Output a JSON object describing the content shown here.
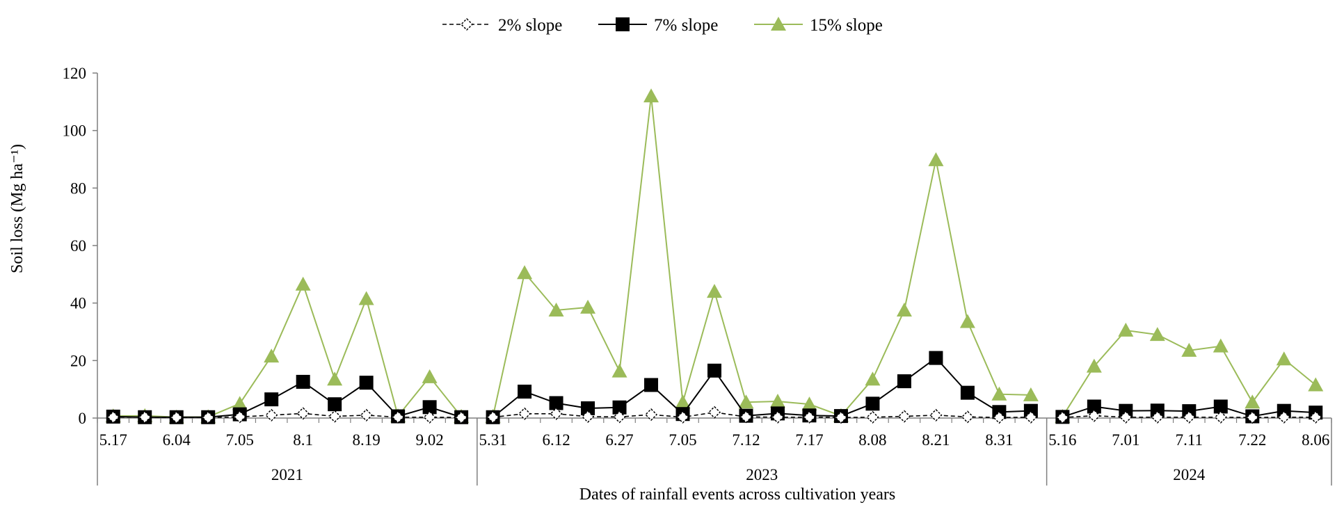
{
  "chart_data": {
    "type": "line",
    "xlabel": "Dates of rainfall events across cultivation years",
    "ylabel": "Soil loss (Mg ha⁻¹)",
    "ylim": [
      0,
      120
    ],
    "yticks": [
      0,
      20,
      40,
      60,
      80,
      100,
      120
    ],
    "grid": false,
    "legend": {
      "placement": "top-center",
      "entries": [
        "2% slope",
        "7% slope",
        "15% slope"
      ]
    },
    "groups": [
      {
        "year": "2021",
        "count": 12,
        "tick_labels": [
          {
            "i": 0,
            "label": "5.17"
          },
          {
            "i": 2,
            "label": "6.04"
          },
          {
            "i": 4,
            "label": "7.05"
          },
          {
            "i": 6,
            "label": "8.1"
          },
          {
            "i": 8,
            "label": "8.19"
          },
          {
            "i": 10,
            "label": "9.02"
          }
        ]
      },
      {
        "year": "2023",
        "count": 18,
        "tick_labels": [
          {
            "i": 0,
            "label": "5.31"
          },
          {
            "i": 2,
            "label": "6.12"
          },
          {
            "i": 4,
            "label": "6.27"
          },
          {
            "i": 6,
            "label": "7.05"
          },
          {
            "i": 8,
            "label": "7.12"
          },
          {
            "i": 10,
            "label": "7.17"
          },
          {
            "i": 12,
            "label": "8.08"
          },
          {
            "i": 14,
            "label": "8.21"
          },
          {
            "i": 16,
            "label": "8.31"
          }
        ]
      },
      {
        "year": "2024",
        "count": 9,
        "tick_labels": [
          {
            "i": 0,
            "label": "5.16"
          },
          {
            "i": 2,
            "label": "7.01"
          },
          {
            "i": 4,
            "label": "7.11"
          },
          {
            "i": 6,
            "label": "7.22"
          },
          {
            "i": 8,
            "label": "8.06"
          }
        ]
      }
    ],
    "series": [
      {
        "name": "2% slope",
        "color": "#000000",
        "style": "dashed",
        "marker": "open-diamond",
        "values": [
          [
            0.3,
            0.3,
            0.2,
            0.2,
            0.4,
            1.0,
            1.6,
            0.6,
            1.0,
            0.3,
            0.3,
            0.2
          ],
          [
            0.3,
            1.5,
            1.5,
            0.5,
            0.4,
            1.2,
            0.3,
            2.0,
            0.4,
            0.3,
            0.3,
            0.2,
            0.3,
            0.6,
            1.0,
            0.4,
            0.2,
            0.3
          ],
          [
            0.2,
            0.8,
            0.3,
            0.3,
            0.3,
            0.3,
            0.2,
            0.3,
            0.3
          ]
        ]
      },
      {
        "name": "7% slope",
        "color": "#000000",
        "style": "solid",
        "marker": "filled-square",
        "values": [
          [
            0.5,
            0.3,
            0.3,
            0.3,
            1.3,
            6.5,
            12.6,
            4.8,
            12.3,
            0.6,
            3.8,
            0.3
          ],
          [
            0.3,
            9.2,
            5.2,
            3.4,
            3.7,
            11.5,
            1.4,
            16.5,
            0.8,
            1.6,
            0.9,
            0.7,
            5.0,
            12.8,
            20.9,
            8.8,
            2.1,
            2.5
          ],
          [
            0.4,
            4.0,
            2.5,
            2.6,
            2.4,
            4.0,
            0.6,
            2.5,
            1.9
          ]
        ]
      },
      {
        "name": "15% slope",
        "color": "#9BBB59",
        "style": "solid",
        "marker": "filled-triangle",
        "values": [
          [
            0.7,
            0.8,
            0.3,
            0.4,
            5.0,
            21.5,
            46.5,
            13.5,
            41.5,
            0.7,
            14.3,
            0.5
          ],
          [
            0.5,
            50.5,
            37.5,
            38.5,
            16.3,
            112.0,
            5.5,
            44.0,
            5.5,
            5.8,
            4.8,
            0.8,
            13.5,
            37.5,
            89.8,
            33.5,
            8.3,
            8.0
          ],
          [
            0.5,
            18.0,
            30.5,
            29.0,
            23.5,
            25.0,
            5.5,
            20.5,
            11.5
          ]
        ]
      }
    ]
  }
}
